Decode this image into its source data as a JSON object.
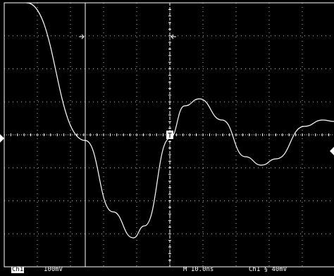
{
  "display": {
    "background_color": "#000000",
    "graticule_color": "#ffffff",
    "trace_color": "#ffffff",
    "trigger_marker_label": "T"
  },
  "readouts": {
    "channel_marker": "Ch1",
    "volts_per_div": "100mV",
    "time_per_div": "M 10.0ns",
    "trigger_info": "Ch1 § 40mV"
  },
  "icons": {
    "left_level_marker": "triangle-right-icon",
    "right_level_marker": "triangle-left-icon",
    "cursor_arrow_left": "arrow-right-icon",
    "cursor_arrow_right": "arrow-left-icon"
  }
}
